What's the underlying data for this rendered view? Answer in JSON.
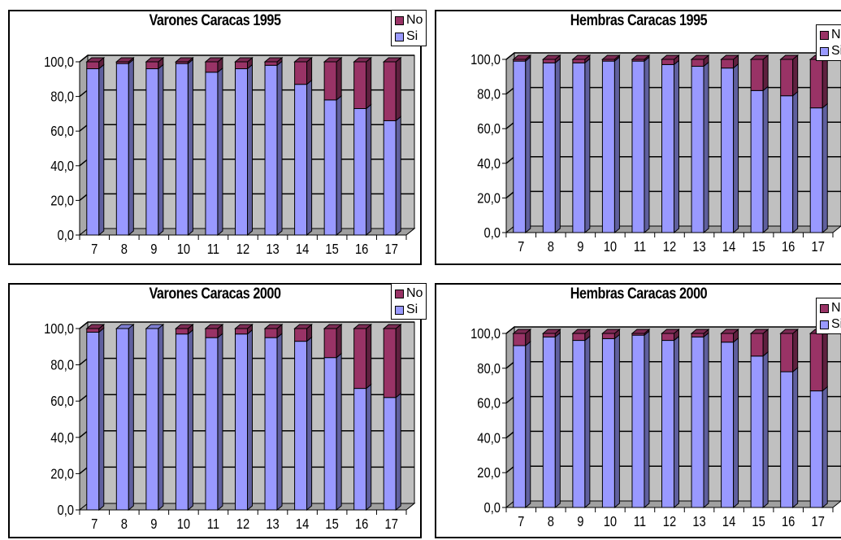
{
  "colors": {
    "si": "#9999FF",
    "no": "#993366",
    "wall": "#C0C0C0",
    "floor": "#A0A0A0"
  },
  "legend": {
    "no": "No",
    "si": "Si"
  },
  "chart_data": [
    {
      "type": "bar",
      "stacked": true,
      "title": "Varones Caracas 1995",
      "categories": [
        "7",
        "8",
        "9",
        "10",
        "11",
        "12",
        "13",
        "14",
        "15",
        "16",
        "17"
      ],
      "series": [
        {
          "name": "Si",
          "values": [
            96,
            99,
            96,
            99,
            94,
            96,
            98,
            87,
            78,
            73,
            66
          ]
        },
        {
          "name": "No",
          "values": [
            4,
            1,
            4,
            1,
            6,
            4,
            2,
            13,
            22,
            27,
            34
          ]
        }
      ],
      "ylim": [
        0,
        100
      ],
      "yticks": [
        "0,0",
        "20,0",
        "40,0",
        "60,0",
        "80,0",
        "100,0"
      ],
      "grid": true,
      "legend_position": "top-right"
    },
    {
      "type": "bar",
      "stacked": true,
      "title": "Hembras Caracas 1995",
      "categories": [
        "7",
        "8",
        "9",
        "10",
        "11",
        "12",
        "13",
        "14",
        "15",
        "16",
        "17"
      ],
      "series": [
        {
          "name": "Si",
          "values": [
            99,
            98,
            98,
            99,
            99,
            97,
            96,
            95,
            82,
            79,
            72
          ]
        },
        {
          "name": "No",
          "values": [
            1,
            2,
            2,
            1,
            1,
            3,
            4,
            5,
            18,
            21,
            28
          ]
        }
      ],
      "ylim": [
        0,
        100
      ],
      "yticks": [
        "0,0",
        "20,0",
        "40,0",
        "60,0",
        "80,0",
        "100,0"
      ],
      "grid": true,
      "legend_position": "top-right"
    },
    {
      "type": "bar",
      "stacked": true,
      "title": "Varones Caracas 2000",
      "categories": [
        "7",
        "8",
        "9",
        "10",
        "11",
        "12",
        "13",
        "14",
        "15",
        "16",
        "17"
      ],
      "series": [
        {
          "name": "Si",
          "values": [
            98,
            100,
            100,
            97,
            95,
            97,
            95,
            93,
            84,
            67,
            62
          ]
        },
        {
          "name": "No",
          "values": [
            2,
            0,
            0,
            3,
            5,
            3,
            5,
            7,
            16,
            33,
            38
          ]
        }
      ],
      "ylim": [
        0,
        100
      ],
      "yticks": [
        "0,0",
        "20,0",
        "40,0",
        "60,0",
        "80,0",
        "100,0"
      ],
      "grid": true,
      "legend_position": "top-right"
    },
    {
      "type": "bar",
      "stacked": true,
      "title": "Hembras Caracas 2000",
      "categories": [
        "7",
        "8",
        "9",
        "10",
        "11",
        "12",
        "13",
        "14",
        "15",
        "16",
        "17"
      ],
      "series": [
        {
          "name": "Si",
          "values": [
            93,
            98,
            96,
            97,
            99,
            96,
            98,
            95,
            87,
            78,
            67
          ]
        },
        {
          "name": "No",
          "values": [
            7,
            2,
            4,
            3,
            1,
            4,
            2,
            5,
            13,
            22,
            33
          ]
        }
      ],
      "ylim": [
        0,
        100
      ],
      "yticks": [
        "0,0",
        "20,0",
        "40,0",
        "60,0",
        "80,0",
        "100,0"
      ],
      "grid": true,
      "legend_position": "top-right"
    }
  ]
}
